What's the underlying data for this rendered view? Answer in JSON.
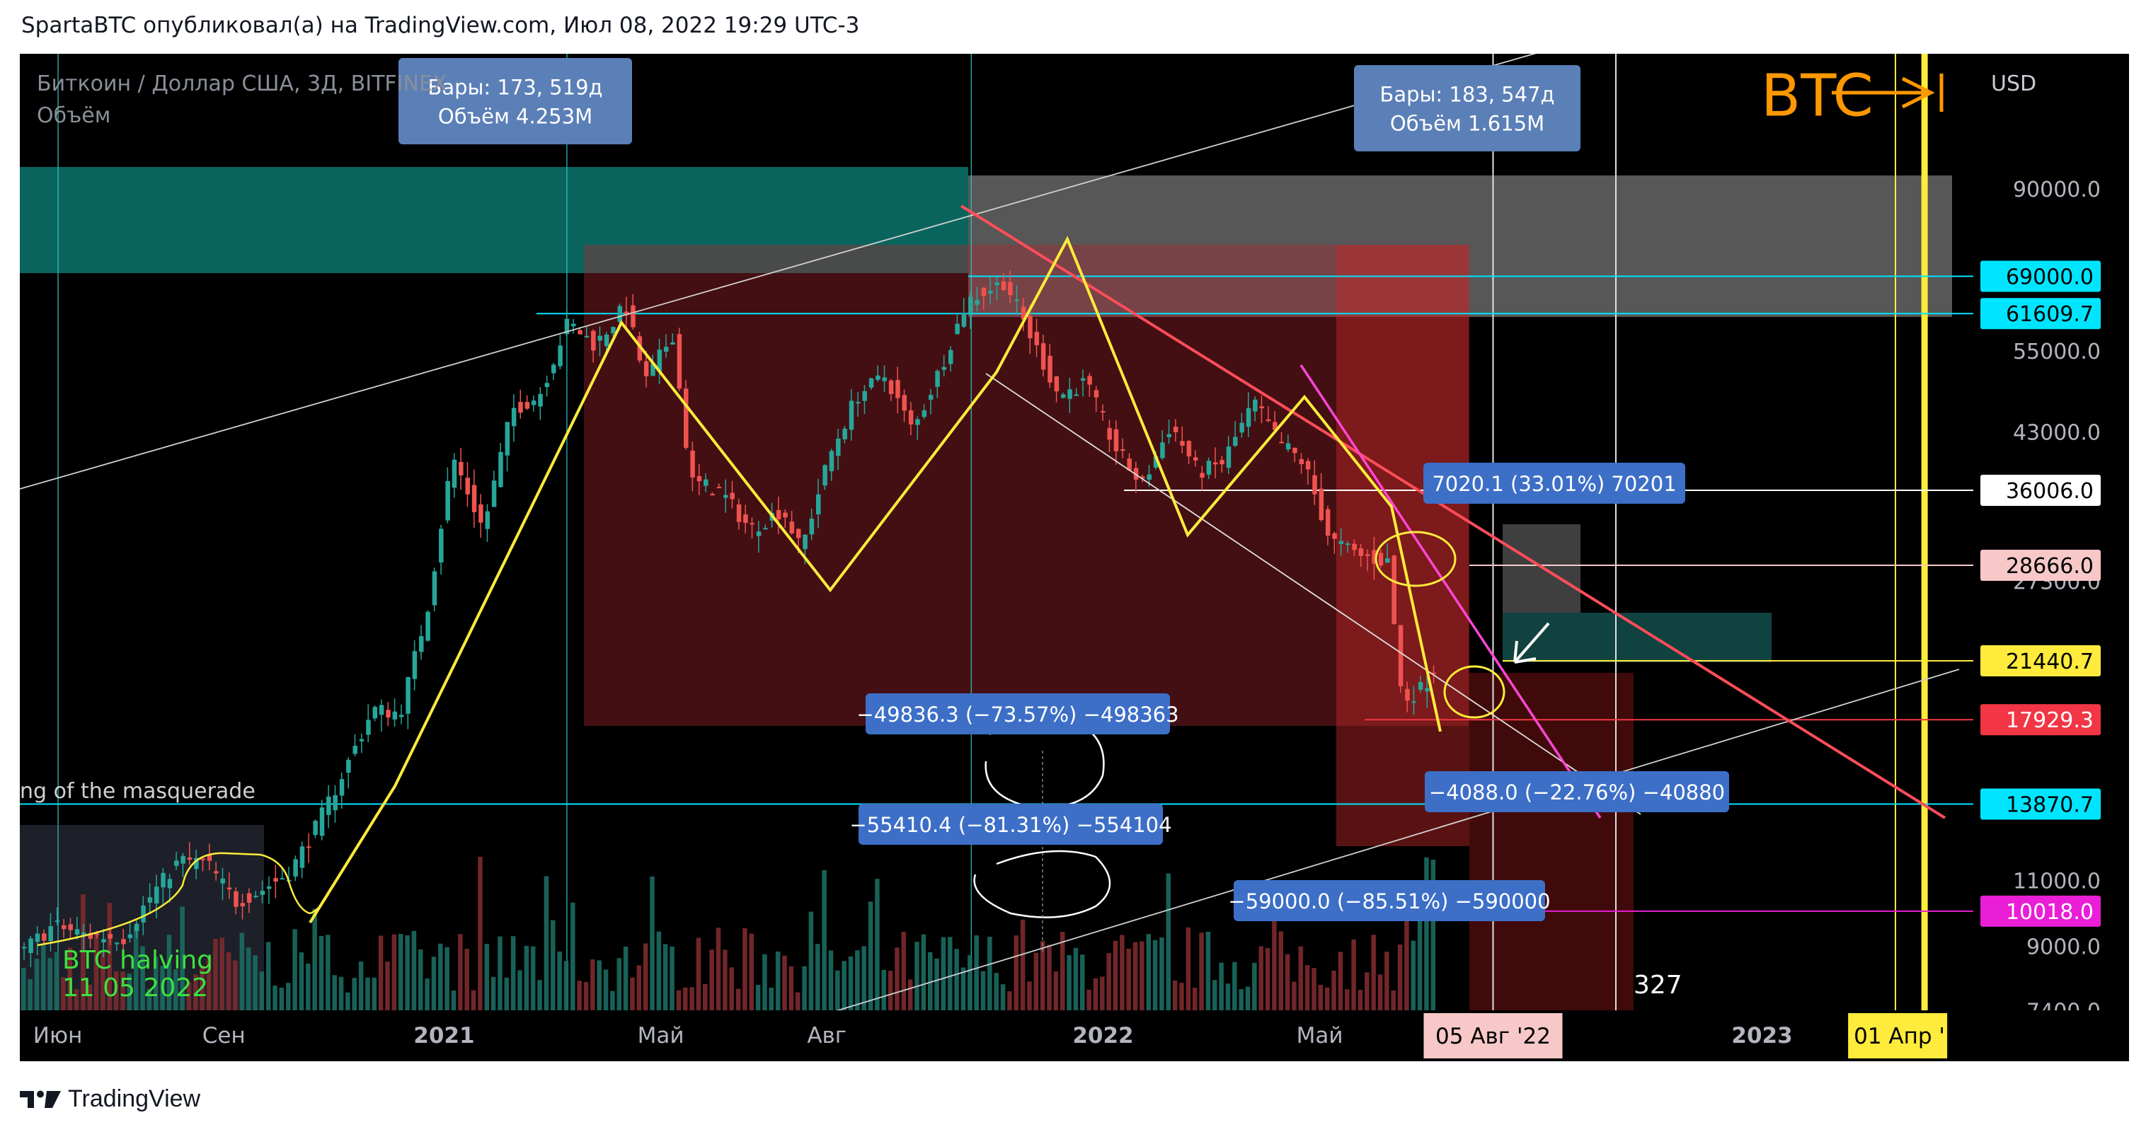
{
  "header": {
    "text": "SpartaBTC опубликовал(а) на TradingView.com, Июл 08, 2022 19:29 UTC-3"
  },
  "footer": {
    "brand": "TradingView"
  },
  "chart_data": {
    "type": "candlestick",
    "symbol_line": "Биткоин / Доллар США, 3Д, BITFINEX",
    "indicator_line": "Объём",
    "currency": "USD",
    "logo_text": "BTC",
    "y_scale": "log",
    "ylim": [
      6800,
      130000
    ],
    "y_ticks": [
      90000,
      55000,
      43000,
      27300,
      11000,
      9000,
      7400
    ],
    "y_tick_labels": [
      "90000.0",
      "55000.0",
      "43000.0",
      "27300.0",
      "11000.0",
      "9000.0",
      "7400.0"
    ],
    "x_ticks": [
      {
        "date": "2020-06-01",
        "label": "Июн",
        "bold": false
      },
      {
        "date": "2020-09-01",
        "label": "Сен",
        "bold": false
      },
      {
        "date": "2021-01-01",
        "label": "2021",
        "bold": true
      },
      {
        "date": "2021-05-01",
        "label": "Май",
        "bold": false
      },
      {
        "date": "2021-08-01",
        "label": "Авг",
        "bold": false
      },
      {
        "date": "2022-01-01",
        "label": "2022",
        "bold": true
      },
      {
        "date": "2022-05-01",
        "label": "Май",
        "bold": false
      },
      {
        "date": "2023-01-01",
        "label": "2023",
        "bold": true
      }
    ],
    "price_labels": [
      {
        "value": 69000,
        "text": "69000.0",
        "bg": "#00e5ff",
        "fg": "#000000"
      },
      {
        "value": 61609.7,
        "text": "61609.7",
        "bg": "#00e5ff",
        "fg": "#000000"
      },
      {
        "value": 36006,
        "text": "36006.0",
        "bg": "#ffffff",
        "fg": "#000000"
      },
      {
        "value": 28666,
        "text": "28666.0",
        "bg": "#f8c8c8",
        "fg": "#000000"
      },
      {
        "value": 21440.7,
        "text": "21440.7",
        "bg": "#ffeb3b",
        "fg": "#000000"
      },
      {
        "value": 17929.3,
        "text": "17929.3",
        "bg": "#f23645",
        "fg": "#ffffff"
      },
      {
        "value": 13870.7,
        "text": "13870.7",
        "bg": "#00e5ff",
        "fg": "#000000"
      },
      {
        "value": 10018,
        "text": "10018.0",
        "bg": "#e91ed6",
        "fg": "#ffffff"
      }
    ],
    "date_labels": [
      {
        "date": "2022-08-05",
        "text": "05 Авг '22",
        "bg": "#f8c8c8"
      },
      {
        "date": "2023-04-01",
        "text": "01 Апр '",
        "bg": "#ffeb3b"
      }
    ],
    "measure_boxes": [
      {
        "line1": "Бары: 173, 519д",
        "line2": "Объём 4.253M"
      },
      {
        "line1": "Бары: 183, 547д",
        "line2": "Объём 1.615M"
      }
    ],
    "range_labels": [
      {
        "text": "7020.1 (33.01%) 70201"
      },
      {
        "text": "−49836.3 (−73.57%) −498363"
      },
      {
        "text": "−55410.4 (−81.31%) −554104"
      },
      {
        "text": "−4088.0 (−22.76%) −40880"
      },
      {
        "text": "−59000.0 (−85.51%) −590000"
      }
    ],
    "annotations": [
      {
        "text": "BTC halving"
      },
      {
        "text": "11 05 2022"
      },
      {
        "text": "ng of the masquerade"
      },
      {
        "text": "327"
      }
    ],
    "price_path": [
      [
        "2020-05-11",
        8700
      ],
      [
        "2020-06-01",
        9600
      ],
      [
        "2020-06-20",
        9300
      ],
      [
        "2020-07-10",
        9250
      ],
      [
        "2020-07-25",
        10500
      ],
      [
        "2020-08-10",
        11700
      ],
      [
        "2020-08-25",
        11600
      ],
      [
        "2020-09-10",
        10300
      ],
      [
        "2020-09-25",
        10700
      ],
      [
        "2020-10-10",
        11300
      ],
      [
        "2020-10-25",
        13000
      ],
      [
        "2020-11-10",
        15500
      ],
      [
        "2020-11-25",
        18500
      ],
      [
        "2020-12-10",
        18300
      ],
      [
        "2020-12-25",
        25000
      ],
      [
        "2021-01-08",
        40000
      ],
      [
        "2021-01-25",
        32000
      ],
      [
        "2021-02-10",
        46000
      ],
      [
        "2021-02-25",
        48000
      ],
      [
        "2021-03-13",
        60000
      ],
      [
        "2021-03-28",
        56000
      ],
      [
        "2021-04-14",
        63000
      ],
      [
        "2021-04-25",
        50000
      ],
      [
        "2021-05-10",
        58000
      ],
      [
        "2021-05-20",
        37000
      ],
      [
        "2021-06-05",
        36000
      ],
      [
        "2021-06-22",
        32000
      ],
      [
        "2021-07-10",
        34000
      ],
      [
        "2021-07-20",
        30000
      ],
      [
        "2021-08-05",
        40000
      ],
      [
        "2021-08-20",
        48000
      ],
      [
        "2021-09-05",
        51000
      ],
      [
        "2021-09-20",
        43000
      ],
      [
        "2021-10-05",
        52000
      ],
      [
        "2021-10-20",
        64000
      ],
      [
        "2021-11-10",
        68000
      ],
      [
        "2021-11-25",
        57000
      ],
      [
        "2021-12-10",
        48000
      ],
      [
        "2021-12-25",
        50000
      ],
      [
        "2022-01-10",
        41000
      ],
      [
        "2022-01-25",
        36500
      ],
      [
        "2022-02-10",
        44000
      ],
      [
        "2022-02-25",
        38000
      ],
      [
        "2022-03-10",
        39000
      ],
      [
        "2022-03-28",
        47000
      ],
      [
        "2022-04-10",
        42000
      ],
      [
        "2022-04-25",
        39000
      ],
      [
        "2022-05-09",
        31000
      ],
      [
        "2022-05-25",
        29500
      ],
      [
        "2022-06-10",
        29000
      ],
      [
        "2022-06-18",
        19000
      ],
      [
        "2022-06-30",
        19800
      ],
      [
        "2022-07-08",
        21440.7
      ]
    ]
  }
}
